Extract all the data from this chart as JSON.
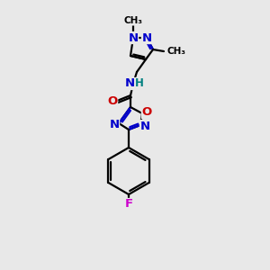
{
  "bg_color": "#e8e8e8",
  "atom_colors": {
    "C": "#000000",
    "N": "#0000cc",
    "O": "#cc0000",
    "F": "#cc00cc",
    "H": "#008080"
  },
  "figsize": [
    3.0,
    3.0
  ],
  "dpi": 100
}
